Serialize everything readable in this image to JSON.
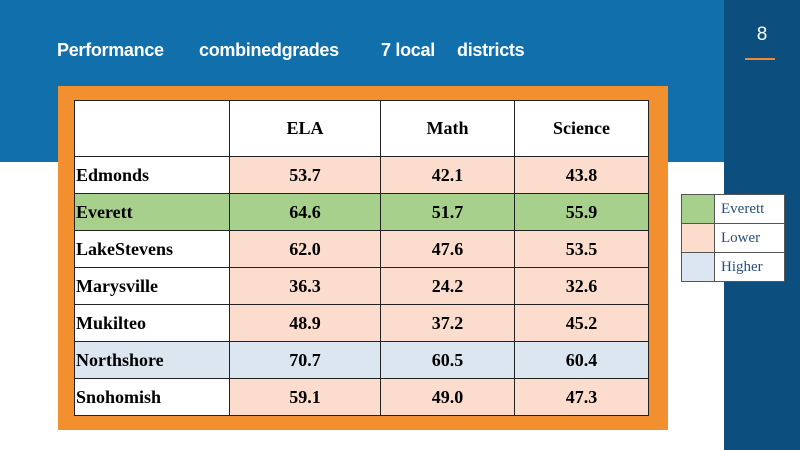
{
  "slide": {
    "page_number": "8",
    "title_parts": [
      "Performance",
      "combinedgrades",
      "7  local",
      "districts"
    ]
  },
  "table": {
    "columns": [
      "",
      "ELA",
      "Math",
      "Science"
    ],
    "rows": [
      {
        "district": "Edmonds",
        "ela": "53.7",
        "math": "42.1",
        "science": "43.8",
        "category": "Lower"
      },
      {
        "district": "Everett",
        "ela": "64.6",
        "math": "51.7",
        "science": "55.9",
        "category": "Everett"
      },
      {
        "district": "LakeStevens",
        "ela": "62.0",
        "math": "47.6",
        "science": "53.5",
        "category": "Lower"
      },
      {
        "district": "Marysville",
        "ela": "36.3",
        "math": "24.2",
        "science": "32.6",
        "category": "Lower"
      },
      {
        "district": "Mukilteo",
        "ela": "48.9",
        "math": "37.2",
        "science": "45.2",
        "category": "Lower"
      },
      {
        "district": "Northshore",
        "ela": "70.7",
        "math": "60.5",
        "science": "60.4",
        "category": "Higher"
      },
      {
        "district": "Snohomish",
        "ela": "59.1",
        "math": "49.0",
        "science": "47.3",
        "category": "Lower"
      }
    ]
  },
  "legend": [
    {
      "label": "Everett",
      "color": "#a8d08d"
    },
    {
      "label": "Lower",
      "color": "#fbdccd"
    },
    {
      "label": "Higher",
      "color": "#dce6f1"
    }
  ],
  "colors": {
    "band": "#1170ac",
    "sidebar": "#0c4e7e",
    "frame": "#f28f2f",
    "accent": "#f0883a"
  }
}
